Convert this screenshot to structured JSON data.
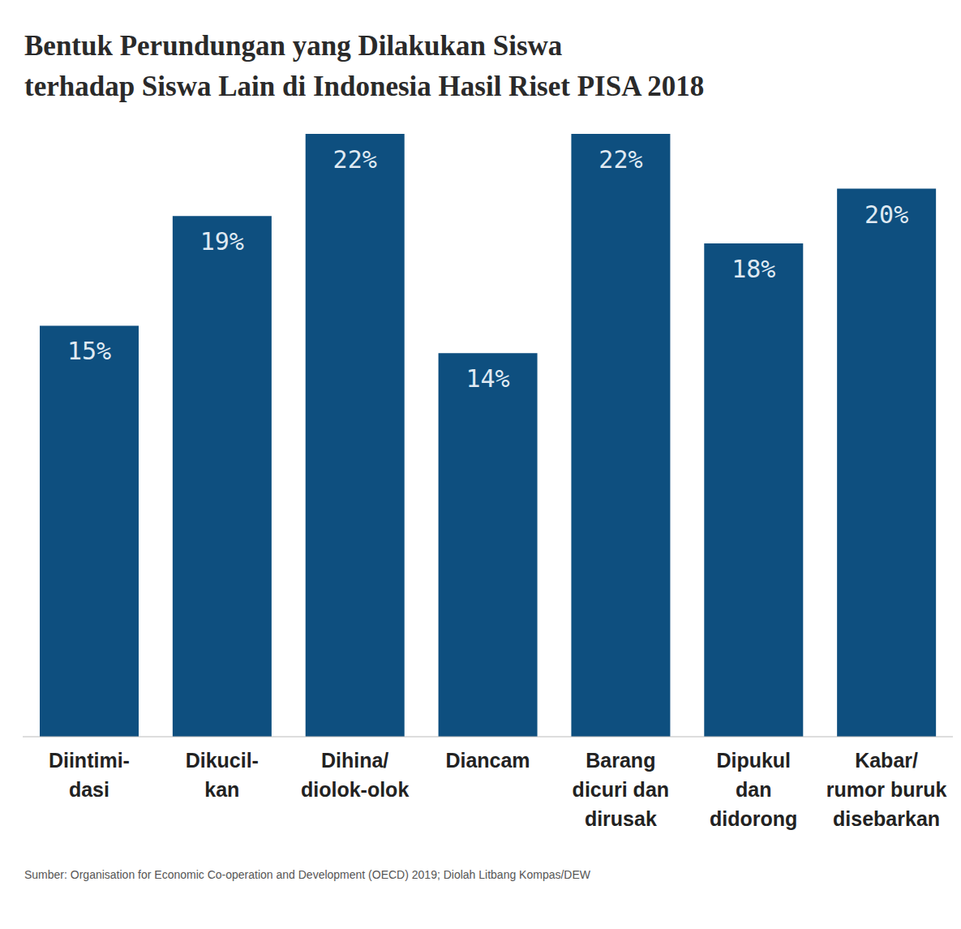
{
  "chart_data": {
    "type": "bar",
    "title": "Bentuk Perundungan yang Dilakukan Siswa\nterhadap Siswa Lain di Indonesia Hasil Riset PISA 2018",
    "categories": [
      "Diintimi-\ndasi",
      "Dikucil-\nkan",
      "Dihina/\ndiolok-olok",
      "Diancam",
      "Barang\ndicuri dan\ndirusak",
      "Dipukul\ndan\ndidorong",
      "Kabar/\nrumor buruk\ndisebarkan"
    ],
    "values": [
      15,
      19,
      22,
      14,
      22,
      18,
      20
    ],
    "value_labels": [
      "15%",
      "19%",
      "22%",
      "14%",
      "22%",
      "18%",
      "20%"
    ],
    "color": "#0e4f7f",
    "ylim": [
      0,
      22
    ],
    "tick_labels": "x",
    "data_labels": true,
    "source": "Sumber: Organisation for Economic Co-operation and Development (OECD) 2019; Diolah Litbang Kompas/DEW"
  }
}
